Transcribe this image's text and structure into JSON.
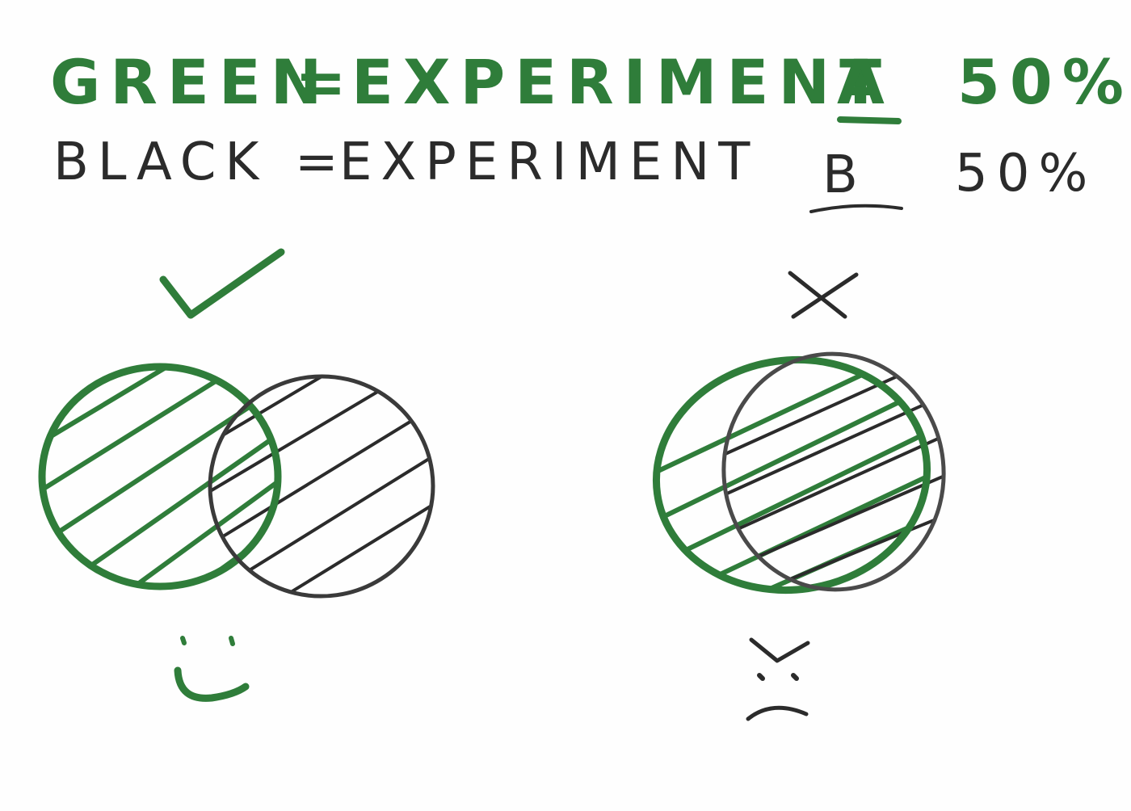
{
  "legend": {
    "green_row": {
      "label": "GREEN",
      "equals": "=",
      "word": "EXPERIMENT",
      "letter": "A",
      "percent": "50%"
    },
    "black_row": {
      "label": "BLACK",
      "equals": "=",
      "word": "EXPERIMENT",
      "letter": "B",
      "percent": "50%"
    }
  },
  "colors": {
    "green": "#2f7d3a",
    "black": "#2b2b2b",
    "grey": "#4a4a4a"
  },
  "icons": {
    "good_mark": "check-icon",
    "bad_mark": "x-icon",
    "good_face": "smiley-face-icon",
    "bad_face": "angry-face-icon"
  }
}
